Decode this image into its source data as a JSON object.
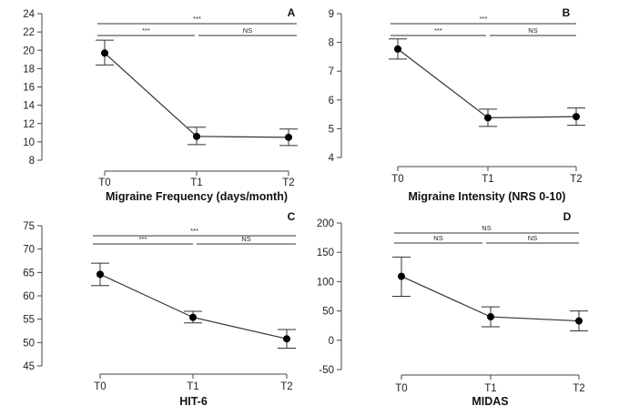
{
  "chart_data": [
    {
      "type": "line",
      "panel_label": "A",
      "xlabel": "Migraine Frequency (days/month)",
      "ylabel": "",
      "categories": [
        "T0",
        "T1",
        "T2"
      ],
      "values": [
        19.7,
        10.6,
        10.5
      ],
      "error_low": [
        18.4,
        9.7,
        9.6
      ],
      "error_high": [
        21.1,
        11.6,
        11.4
      ],
      "ylim": [
        8,
        24
      ],
      "yticks": [
        "8",
        "10",
        "12",
        "14",
        "16",
        "18",
        "20",
        "22",
        "24"
      ],
      "comparisons": [
        {
          "from": "T0",
          "to": "T2",
          "label": "***"
        },
        {
          "from": "T0",
          "to": "T1",
          "label": "***"
        },
        {
          "from": "T1",
          "to": "T2",
          "label": "NS"
        }
      ]
    },
    {
      "type": "line",
      "panel_label": "B",
      "xlabel": "Migraine Intensity (NRS 0-10)",
      "ylabel": "",
      "categories": [
        "T0",
        "T1",
        "T2"
      ],
      "values": [
        7.77,
        5.38,
        5.42
      ],
      "error_low": [
        7.42,
        5.08,
        5.12
      ],
      "error_high": [
        8.12,
        5.68,
        5.72
      ],
      "ylim": [
        4,
        9
      ],
      "yticks": [
        "4",
        "5",
        "6",
        "7",
        "8",
        "9"
      ],
      "comparisons": [
        {
          "from": "T0",
          "to": "T2",
          "label": "***"
        },
        {
          "from": "T0",
          "to": "T1",
          "label": "***"
        },
        {
          "from": "T1",
          "to": "T2",
          "label": "NS"
        }
      ]
    },
    {
      "type": "line",
      "panel_label": "C",
      "xlabel": "HIT-6",
      "ylabel": "",
      "categories": [
        "T0",
        "T1",
        "T2"
      ],
      "values": [
        64.6,
        55.4,
        50.8
      ],
      "error_low": [
        62.2,
        54.2,
        48.8
      ],
      "error_high": [
        67.0,
        56.7,
        52.8
      ],
      "ylim": [
        45,
        75
      ],
      "yticks": [
        "45",
        "50",
        "55",
        "60",
        "65",
        "70",
        "75"
      ],
      "comparisons": [
        {
          "from": "T0",
          "to": "T2",
          "label": "***"
        },
        {
          "from": "T0",
          "to": "T1",
          "label": "***"
        },
        {
          "from": "T1",
          "to": "T2",
          "label": "NS"
        }
      ]
    },
    {
      "type": "line",
      "panel_label": "D",
      "xlabel": "MIDAS",
      "ylabel": "",
      "categories": [
        "T0",
        "T1",
        "T2"
      ],
      "values": [
        109,
        40,
        33
      ],
      "error_low": [
        75,
        23,
        16
      ],
      "error_high": [
        142,
        57,
        50
      ],
      "ylim": [
        -50,
        200
      ],
      "yticks": [
        "-50",
        "0",
        "50",
        "100",
        "150",
        "200"
      ],
      "comparisons": [
        {
          "from": "T0",
          "to": "T2",
          "label": "NS"
        },
        {
          "from": "T0",
          "to": "T1",
          "label": "NS"
        },
        {
          "from": "T1",
          "to": "T2",
          "label": "NS"
        }
      ]
    }
  ]
}
